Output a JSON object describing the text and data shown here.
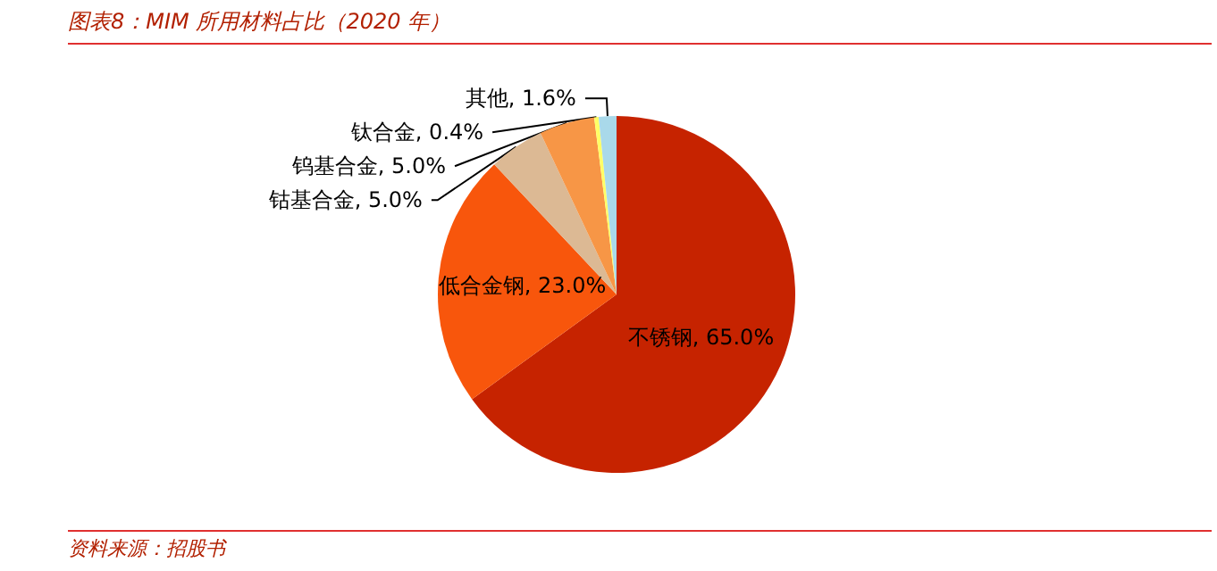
{
  "chart_data": {
    "type": "pie",
    "title": "图表8：MIM 所用材料占比（2020 年）",
    "categories": [
      "不锈钢",
      "低合金钢",
      "钴基合金",
      "钨基合金",
      "钛合金",
      "其他"
    ],
    "values": [
      65.0,
      23.0,
      5.0,
      5.0,
      0.4,
      1.6
    ],
    "value_labels": [
      "65.0%",
      "23.0%",
      "5.0%",
      "5.0%",
      "0.4%",
      "1.6%"
    ],
    "colors": [
      "#c62300",
      "#f8560c",
      "#dcb994",
      "#f79646",
      "#ffff66",
      "#a9d9ea"
    ],
    "annotations": [
      "资料来源：招股书"
    ]
  }
}
